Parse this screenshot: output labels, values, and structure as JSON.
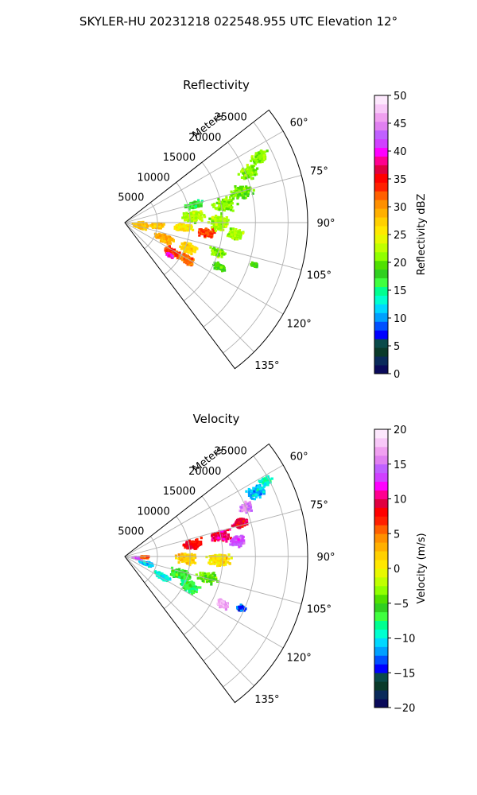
{
  "figure": {
    "suptitle": "SKYLER-HU  20231218  022548.955 UTC Elevation 12°"
  },
  "colors": {
    "grid": "#b0b0b0",
    "axis": "#000000"
  },
  "chart_data": [
    {
      "type": "heatmap",
      "title": "Reflectivity",
      "coordinate_system": "polar sector",
      "radial_axis": {
        "label": "Meters",
        "ticks": [
          5000,
          10000,
          15000,
          20000,
          25000
        ],
        "tick_labels": [
          "5000",
          "10000",
          "15000",
          "20000",
          "25000"
        ],
        "range": [
          0,
          28000
        ]
      },
      "azimuth_axis": {
        "range_deg": [
          52,
          143
        ],
        "ticks_deg": [
          60,
          75,
          90,
          105,
          120,
          135
        ],
        "tick_labels": [
          "60°",
          "75°",
          "90°",
          "105°",
          "120°",
          "135°"
        ]
      },
      "grid": true,
      "colorbar": {
        "label": "Reflectivity dBZ",
        "range": [
          0,
          50
        ],
        "ticks": [
          0,
          5,
          10,
          15,
          20,
          25,
          30,
          35,
          40,
          45,
          50
        ],
        "tick_labels": [
          "0",
          "5",
          "10",
          "15",
          "20",
          "25",
          "30",
          "35",
          "40",
          "45",
          "50"
        ],
        "colormap": [
          "#0a0a5a",
          "#0a2a5a",
          "#0a3a2a",
          "#0a4a4a",
          "#0000ff",
          "#0050ff",
          "#00a0ff",
          "#00d8ff",
          "#00ffd0",
          "#00ff90",
          "#40ff40",
          "#30d020",
          "#50e000",
          "#90ff00",
          "#c0ff00",
          "#e8f800",
          "#ffe800",
          "#ffd000",
          "#ffb000",
          "#ff9000",
          "#ff6000",
          "#ff2000",
          "#ff0000",
          "#e00040",
          "#ff0090",
          "#ff00ff",
          "#d040ff",
          "#c060ff",
          "#e080f0",
          "#f0a0f0",
          "#f8c8f8",
          "#fde8fd"
        ]
      },
      "echo_blobs": [
        {
          "r": 2500,
          "az": 100,
          "dr": 2200,
          "daz": 22,
          "v": 28
        },
        {
          "r": 5000,
          "az": 95,
          "dr": 2000,
          "daz": 10,
          "v": 28
        },
        {
          "r": 6500,
          "az": 112,
          "dr": 3000,
          "daz": 10,
          "v": 29
        },
        {
          "r": 8500,
          "az": 122,
          "dr": 2500,
          "daz": 8,
          "v": 33
        },
        {
          "r": 8500,
          "az": 126,
          "dr": 1200,
          "daz": 3,
          "v": 40
        },
        {
          "r": 10500,
          "az": 112,
          "dr": 2500,
          "daz": 9,
          "v": 27
        },
        {
          "r": 11000,
          "az": 120,
          "dr": 2500,
          "daz": 7,
          "v": 32
        },
        {
          "r": 9000,
          "az": 95,
          "dr": 3000,
          "daz": 7,
          "v": 26
        },
        {
          "r": 10500,
          "az": 85,
          "dr": 3500,
          "daz": 10,
          "v": 22
        },
        {
          "r": 11000,
          "az": 76,
          "dr": 3000,
          "daz": 6,
          "v": 17
        },
        {
          "r": 12500,
          "az": 97,
          "dr": 2500,
          "daz": 6,
          "v": 33
        },
        {
          "r": 14500,
          "az": 90,
          "dr": 3000,
          "daz": 10,
          "v": 22
        },
        {
          "r": 15500,
          "az": 80,
          "dr": 3500,
          "daz": 8,
          "v": 21
        },
        {
          "r": 17000,
          "az": 96,
          "dr": 2500,
          "daz": 6,
          "v": 22
        },
        {
          "r": 15000,
          "az": 108,
          "dr": 2500,
          "daz": 5,
          "v": 21
        },
        {
          "r": 18500,
          "az": 75,
          "dr": 3500,
          "daz": 7,
          "v": 20
        },
        {
          "r": 20500,
          "az": 68,
          "dr": 3000,
          "daz": 6,
          "v": 21
        },
        {
          "r": 23000,
          "az": 64,
          "dr": 3000,
          "daz": 5,
          "v": 21
        },
        {
          "r": 16000,
          "az": 115,
          "dr": 2000,
          "daz": 4,
          "v": 19
        },
        {
          "r": 21000,
          "az": 108,
          "dr": 1200,
          "daz": 2,
          "v": 19
        }
      ]
    },
    {
      "type": "heatmap",
      "title": "Velocity",
      "coordinate_system": "polar sector",
      "radial_axis": {
        "label": "Meters",
        "ticks": [
          5000,
          10000,
          15000,
          20000,
          25000
        ],
        "tick_labels": [
          "5000",
          "10000",
          "15000",
          "20000",
          "25000"
        ],
        "range": [
          0,
          28000
        ]
      },
      "azimuth_axis": {
        "range_deg": [
          52,
          143
        ],
        "ticks_deg": [
          60,
          75,
          90,
          105,
          120,
          135
        ],
        "tick_labels": [
          "60°",
          "75°",
          "90°",
          "105°",
          "120°",
          "135°"
        ]
      },
      "grid": true,
      "colorbar": {
        "label": "Velocity (m/s)",
        "range": [
          -20,
          20
        ],
        "ticks": [
          -20,
          -15,
          -10,
          -5,
          0,
          5,
          10,
          15,
          20
        ],
        "tick_labels": [
          "−20",
          "−15",
          "−10",
          "−5",
          "0",
          "5",
          "10",
          "15",
          "20"
        ],
        "colormap": [
          "#0a0a5a",
          "#0a2a5a",
          "#0a3a2a",
          "#0a4a4a",
          "#0000ff",
          "#0050ff",
          "#00a0ff",
          "#00d8ff",
          "#00ffd0",
          "#00ff90",
          "#40ff40",
          "#30d020",
          "#50e000",
          "#90ff00",
          "#c0ff00",
          "#e8f800",
          "#ffe800",
          "#ffd000",
          "#ffb000",
          "#ff9000",
          "#ff6000",
          "#ff2000",
          "#ff0000",
          "#e00040",
          "#ff0090",
          "#ff00ff",
          "#d040ff",
          "#c060ff",
          "#e080f0",
          "#f0a0f0",
          "#f8c8f8",
          "#fde8fd"
        ]
      },
      "echo_blobs": [
        {
          "r": 2000,
          "az": 97,
          "dr": 1500,
          "daz": 10,
          "v": 14
        },
        {
          "r": 3500,
          "az": 108,
          "dr": 2000,
          "daz": 8,
          "v": -11
        },
        {
          "r": 3000,
          "az": 92,
          "dr": 1500,
          "daz": 6,
          "v": 6
        },
        {
          "r": 6500,
          "az": 118,
          "dr": 3000,
          "daz": 7,
          "v": -10
        },
        {
          "r": 9000,
          "az": 108,
          "dr": 3500,
          "daz": 10,
          "v": -6
        },
        {
          "r": 11000,
          "az": 115,
          "dr": 3000,
          "daz": 9,
          "v": -7
        },
        {
          "r": 13000,
          "az": 104,
          "dr": 3000,
          "daz": 7,
          "v": -4
        },
        {
          "r": 9500,
          "az": 92,
          "dr": 3500,
          "daz": 10,
          "v": 2
        },
        {
          "r": 14500,
          "az": 92,
          "dr": 3500,
          "daz": 8,
          "v": 1
        },
        {
          "r": 10500,
          "az": 80,
          "dr": 3000,
          "daz": 8,
          "v": 8
        },
        {
          "r": 15000,
          "az": 78,
          "dr": 3000,
          "daz": 7,
          "v": 10
        },
        {
          "r": 17500,
          "az": 82,
          "dr": 2500,
          "daz": 6,
          "v": 14
        },
        {
          "r": 18500,
          "az": 74,
          "dr": 2500,
          "daz": 5,
          "v": 9
        },
        {
          "r": 20000,
          "az": 68,
          "dr": 2000,
          "daz": 5,
          "v": 16
        },
        {
          "r": 22500,
          "az": 64,
          "dr": 3000,
          "daz": 5,
          "v": -11
        },
        {
          "r": 24500,
          "az": 62,
          "dr": 2000,
          "daz": 4,
          "v": -9
        },
        {
          "r": 16500,
          "az": 116,
          "dr": 2000,
          "daz": 4,
          "v": 17
        },
        {
          "r": 19500,
          "az": 114,
          "dr": 1500,
          "daz": 3,
          "v": -13
        }
      ]
    }
  ]
}
